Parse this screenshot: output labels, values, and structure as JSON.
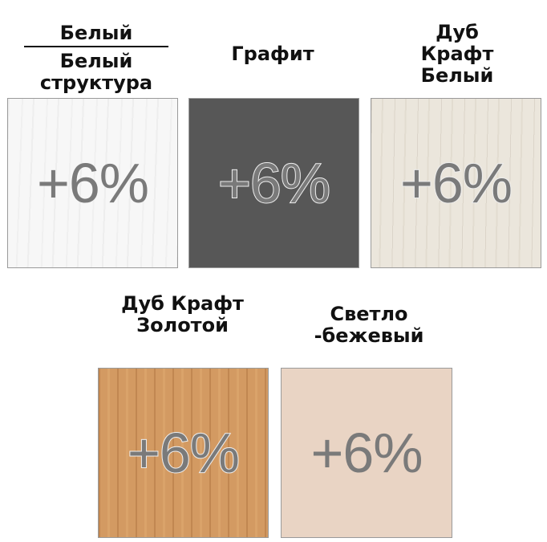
{
  "swatches": [
    {
      "label_top": "Белый",
      "label_bottom": "Белый структура",
      "badge": "+6%",
      "color": "#f7f7f7"
    },
    {
      "label": "Графит",
      "badge": "+6%",
      "color": "#575757"
    },
    {
      "label": "Дуб Крафт Белый",
      "badge": "+6%",
      "color": "#ebe6dc"
    },
    {
      "label": "Дуб Крафт Золотой",
      "badge": "+6%",
      "color": "#d39a62"
    },
    {
      "label": "Светло -бежевый",
      "badge": "+6%",
      "color": "#e9d4c4"
    }
  ]
}
